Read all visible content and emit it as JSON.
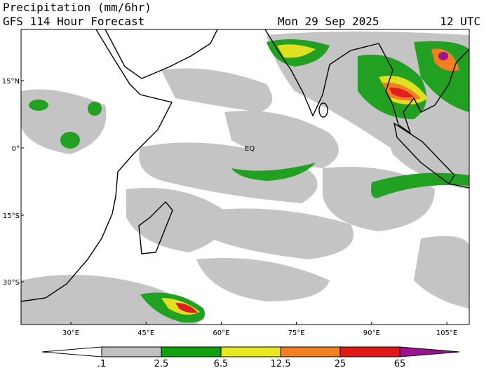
{
  "header": {
    "title": "Precipitation (mm/6hr)",
    "subtitle": "GFS 114 Hour Forecast",
    "date": "Mon 29 Sep 2025",
    "time": "12 UTC"
  },
  "map": {
    "lat_labels": [
      "15°N",
      "0°",
      "15°S",
      "30°S"
    ],
    "lon_labels": [
      "30°E",
      "45°E",
      "60°E",
      "75°E",
      "90°E",
      "105°E"
    ],
    "equator_label": "EQ"
  },
  "colorbar": {
    "labels": [
      ".1",
      "2.5",
      "6.5",
      "12.5",
      "25",
      "65"
    ]
  }
}
